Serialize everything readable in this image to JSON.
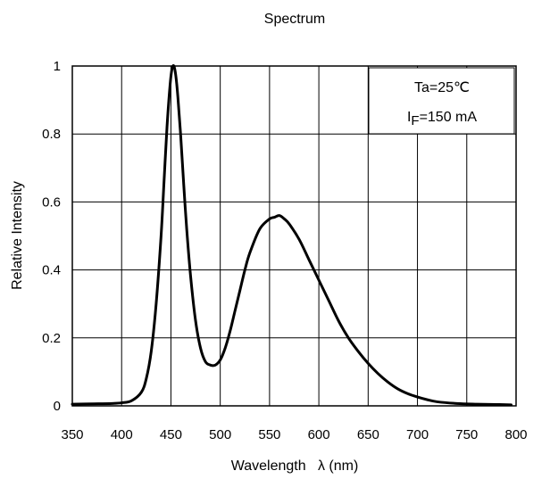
{
  "chart_data": {
    "type": "line",
    "title": "Spectrum",
    "xlabel": "Wavelength   λ (nm)",
    "ylabel": "Relative Intensity",
    "xlim": [
      350,
      800
    ],
    "ylim": [
      0,
      1
    ],
    "x_ticks": [
      "350",
      "400",
      "450",
      "500",
      "550",
      "600",
      "650",
      "700",
      "750",
      "800"
    ],
    "y_ticks": [
      "0",
      "0.2",
      "0.4",
      "0.6",
      "0.8",
      "1"
    ],
    "grid": true,
    "annotation": {
      "line1": "Ta=25℃",
      "line2_prefix": "I",
      "line2_sub": "F",
      "line2_rest": "=150 mA",
      "placement": "top-right"
    },
    "series": [
      {
        "x": [
          350,
          370,
          390,
          400,
          410,
          420,
          425,
          430,
          435,
          440,
          443,
          446,
          449,
          451,
          453,
          455,
          457,
          460,
          463,
          466,
          470,
          475,
          480,
          485,
          490,
          495,
          500,
          505,
          510,
          515,
          520,
          525,
          530,
          540,
          550,
          555,
          560,
          565,
          570,
          580,
          590,
          600,
          610,
          620,
          630,
          640,
          650,
          660,
          670,
          680,
          690,
          700,
          710,
          720,
          740,
          760,
          780,
          795
        ],
        "y": [
          0.005,
          0.006,
          0.007,
          0.009,
          0.015,
          0.04,
          0.08,
          0.16,
          0.3,
          0.5,
          0.66,
          0.82,
          0.94,
          0.99,
          1.0,
          0.97,
          0.91,
          0.79,
          0.65,
          0.52,
          0.38,
          0.25,
          0.17,
          0.13,
          0.12,
          0.12,
          0.135,
          0.17,
          0.22,
          0.28,
          0.34,
          0.4,
          0.45,
          0.52,
          0.55,
          0.555,
          0.56,
          0.55,
          0.535,
          0.49,
          0.43,
          0.37,
          0.31,
          0.25,
          0.2,
          0.16,
          0.125,
          0.095,
          0.07,
          0.05,
          0.036,
          0.026,
          0.018,
          0.012,
          0.007,
          0.005,
          0.004,
          0.003
        ]
      }
    ]
  }
}
